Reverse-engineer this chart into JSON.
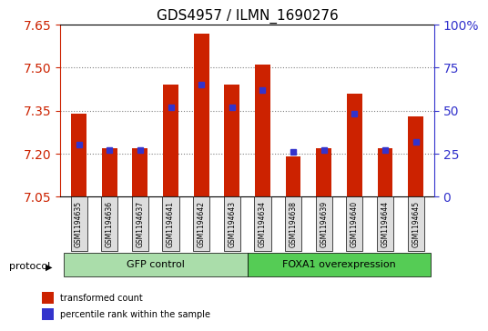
{
  "title": "GDS4957 / ILMN_1690276",
  "samples": [
    "GSM1194635",
    "GSM1194636",
    "GSM1194637",
    "GSM1194641",
    "GSM1194642",
    "GSM1194643",
    "GSM1194634",
    "GSM1194638",
    "GSM1194639",
    "GSM1194640",
    "GSM1194644",
    "GSM1194645"
  ],
  "red_values": [
    7.34,
    7.22,
    7.22,
    7.44,
    7.62,
    7.44,
    7.51,
    7.19,
    7.22,
    7.41,
    7.22,
    7.33
  ],
  "blue_values": [
    30,
    27,
    27,
    52,
    65,
    52,
    62,
    26,
    27,
    48,
    27,
    32
  ],
  "ylim_left": [
    7.05,
    7.65
  ],
  "ylim_right": [
    0,
    100
  ],
  "yticks_left": [
    7.05,
    7.2,
    7.35,
    7.5,
    7.65
  ],
  "yticks_right": [
    0,
    25,
    50,
    75,
    100
  ],
  "ytick_labels_right": [
    "0",
    "25",
    "50",
    "75",
    "100%"
  ],
  "hlines": [
    7.2,
    7.35,
    7.5
  ],
  "group1_label": "GFP control",
  "group2_label": "FOXA1 overexpression",
  "group1_count": 6,
  "group2_count": 6,
  "protocol_label": "protocol",
  "legend_red": "transformed count",
  "legend_blue": "percentile rank within the sample",
  "bar_color": "#cc2200",
  "blue_color": "#3333cc",
  "group1_color": "#aaddaa",
  "group2_color": "#55cc55",
  "tick_color_left": "#cc2200",
  "tick_color_right": "#3333cc",
  "bar_width": 0.5,
  "base_value": 7.05
}
